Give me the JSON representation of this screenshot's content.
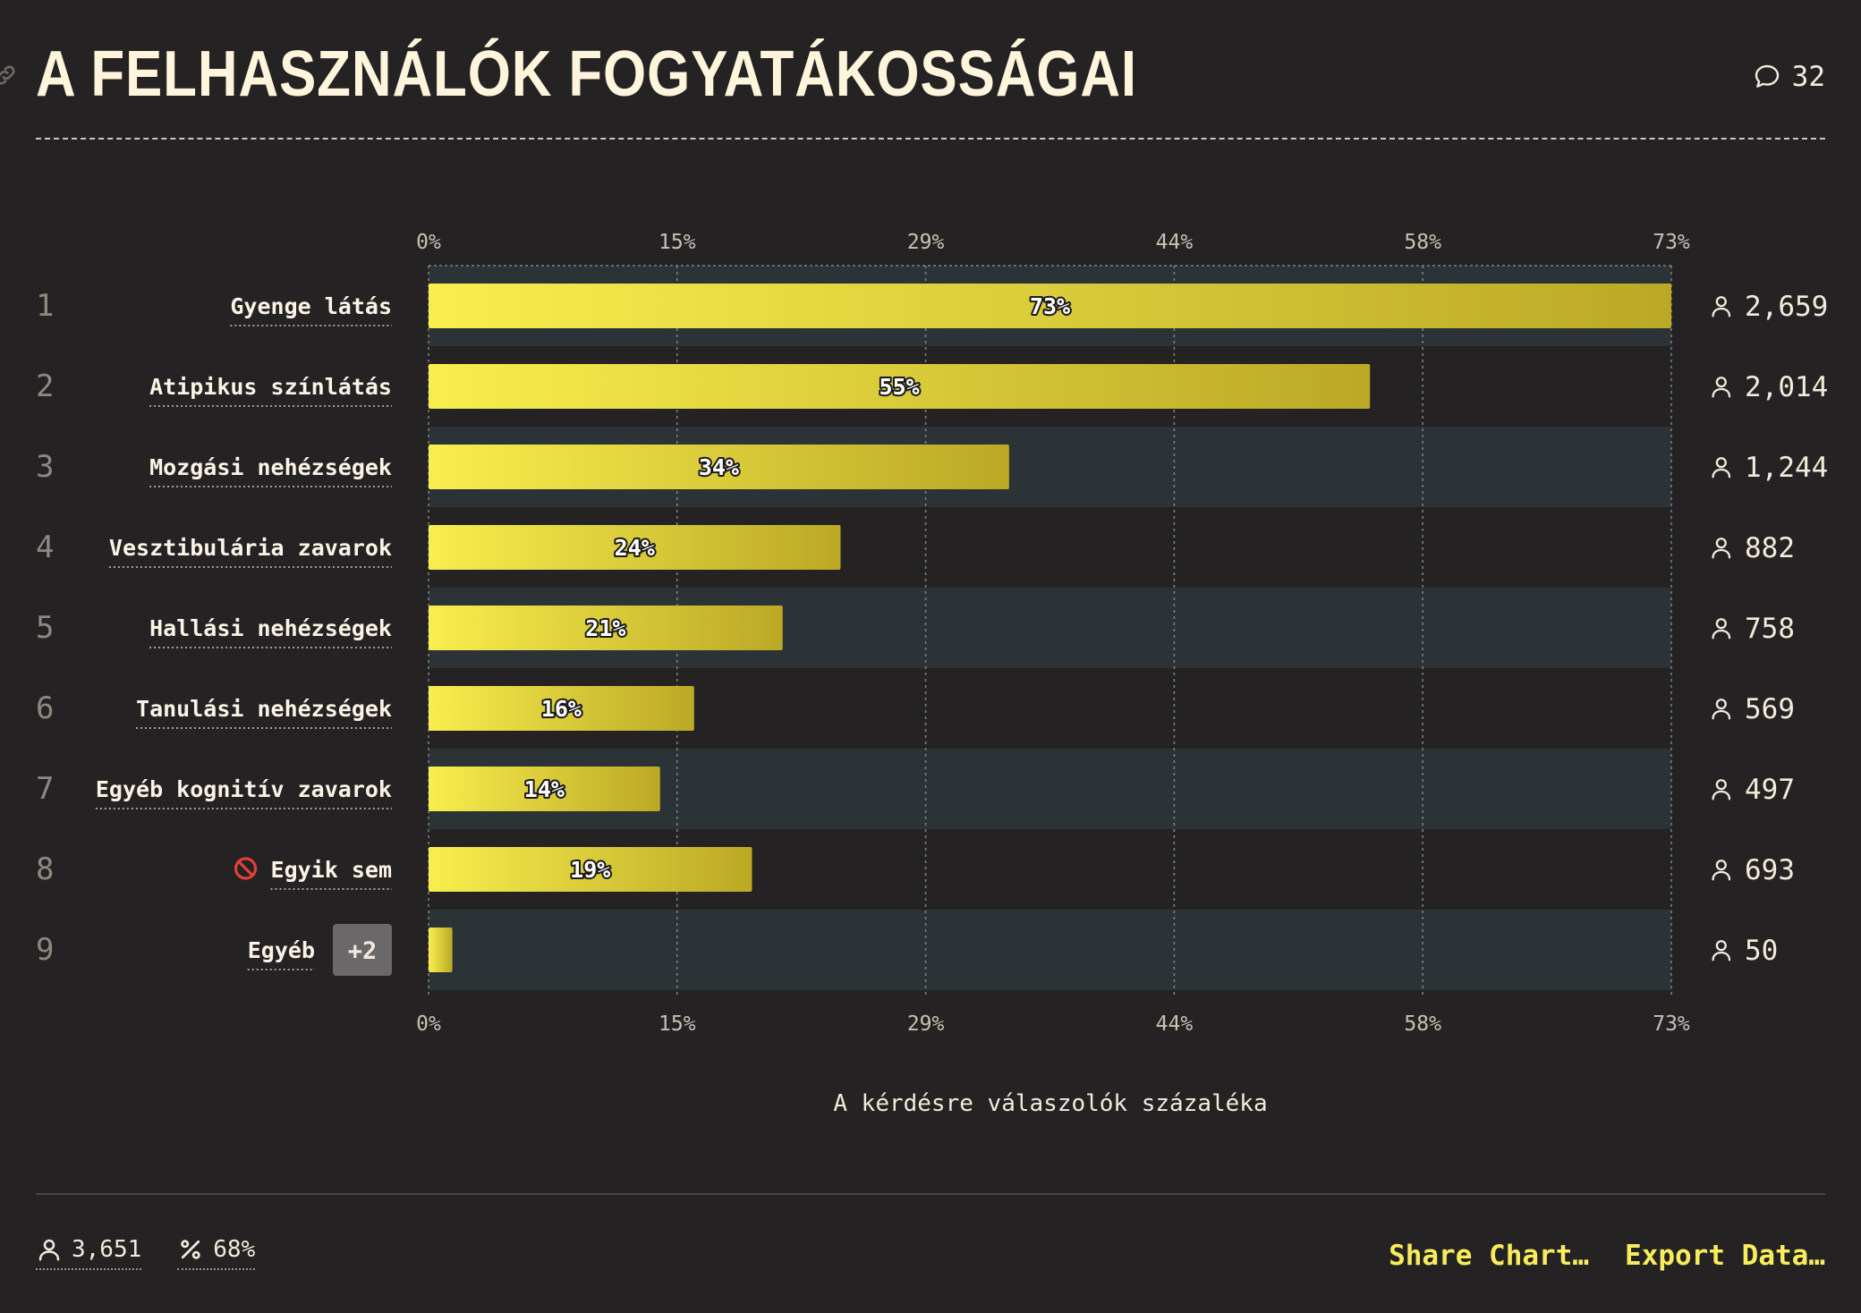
{
  "header": {
    "title": "A FELHASZNÁLÓK FOGYATÁKOSSÁGAI",
    "comment_count": "32"
  },
  "chart_data": {
    "type": "bar",
    "orientation": "horizontal",
    "xlabel": "A kérdésre válaszolók százaléka",
    "xlim": [
      0,
      73
    ],
    "ticks": [
      {
        "value": 0,
        "label": "0%"
      },
      {
        "value": 14.6,
        "label": "15%"
      },
      {
        "value": 29.2,
        "label": "29%"
      },
      {
        "value": 43.8,
        "label": "44%"
      },
      {
        "value": 58.4,
        "label": "58%"
      },
      {
        "value": 73,
        "label": "73%"
      }
    ],
    "grid": true,
    "rows": [
      {
        "rank": "1",
        "label": "Gyenge látás",
        "value": 73,
        "value_label": "73%",
        "count": "2,659"
      },
      {
        "rank": "2",
        "label": "Atipikus színlátás",
        "value": 55.3,
        "value_label": "55%",
        "count": "2,014"
      },
      {
        "rank": "3",
        "label": "Mozgási nehézségek",
        "value": 34.1,
        "value_label": "34%",
        "count": "1,244"
      },
      {
        "rank": "4",
        "label": "Vesztibulária zavarok",
        "value": 24.2,
        "value_label": "24%",
        "count": "882"
      },
      {
        "rank": "5",
        "label": "Hallási nehézségek",
        "value": 20.8,
        "value_label": "21%",
        "count": "758"
      },
      {
        "rank": "6",
        "label": "Tanulási nehézségek",
        "value": 15.6,
        "value_label": "16%",
        "count": "569"
      },
      {
        "rank": "7",
        "label": "Egyéb kognitív zavarok",
        "value": 13.6,
        "value_label": "14%",
        "count": "497"
      },
      {
        "rank": "8",
        "label": "Egyik sem",
        "value": 19,
        "value_label": "19%",
        "count": "693",
        "icon": "prohibited-icon"
      },
      {
        "rank": "9",
        "label": "Egyéb",
        "value": 1.4,
        "value_label": "",
        "count": "50",
        "badge": "+2"
      }
    ],
    "colors": {
      "bar_start": "#f8ee4e",
      "bar_end": "#bba925",
      "stripe": "#2c3336",
      "background": "#252223"
    }
  },
  "footer": {
    "respondents": "3,651",
    "percent": "68%",
    "share_label": "Share Chart…",
    "export_label": "Export Data…"
  }
}
